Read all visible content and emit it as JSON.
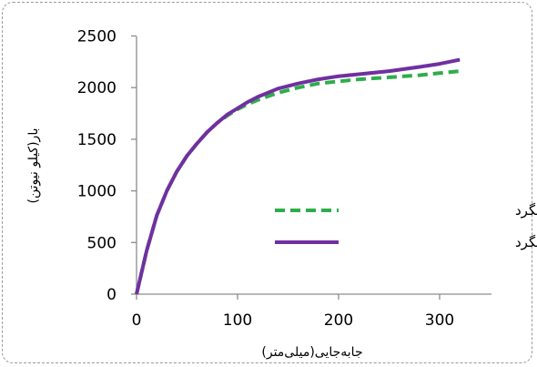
{
  "chart_data": {
    "type": "line",
    "title": "",
    "xlabel": "جابه‌جایی(میلی‌متر)",
    "ylabel": "بار(کیلو نیوتن)",
    "xlim": [
      0,
      350
    ],
    "ylim": [
      0,
      2500
    ],
    "xticks": [
      0,
      100,
      200,
      300
    ],
    "yticks": [
      0,
      500,
      1000,
      1500,
      2000,
      2500
    ],
    "grid": false,
    "legend_position": "right-middle",
    "series": [
      {
        "name": "دال با یک شبکه میلگرد",
        "color": "#2ead4a",
        "dash": "dashed",
        "x": [
          0,
          10,
          20,
          30,
          40,
          50,
          60,
          70,
          80,
          90,
          100,
          110,
          120,
          140,
          160,
          180,
          200,
          220,
          250,
          280,
          300,
          320
        ],
        "y": [
          0,
          420,
          760,
          1000,
          1190,
          1340,
          1460,
          1570,
          1660,
          1730,
          1790,
          1840,
          1880,
          1950,
          2000,
          2040,
          2060,
          2080,
          2100,
          2120,
          2140,
          2160
        ]
      },
      {
        "name": "دال با دو شبکه میلگرد",
        "color": "#7030a0",
        "dash": "solid",
        "x": [
          0,
          10,
          20,
          30,
          40,
          50,
          60,
          70,
          80,
          90,
          100,
          110,
          120,
          140,
          160,
          180,
          200,
          220,
          250,
          280,
          300,
          320
        ],
        "y": [
          0,
          420,
          760,
          1000,
          1190,
          1340,
          1460,
          1570,
          1660,
          1740,
          1800,
          1860,
          1910,
          1990,
          2040,
          2080,
          2110,
          2130,
          2160,
          2200,
          2230,
          2270
        ]
      }
    ]
  }
}
